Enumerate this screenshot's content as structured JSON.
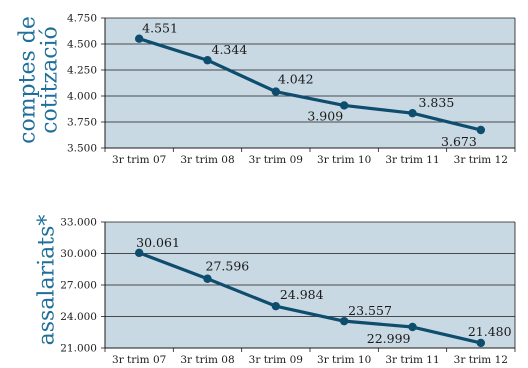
{
  "colors": {
    "plot_bg": "#c9d9e3",
    "line": "#0e4d6e",
    "axis_label": "#1f6f9a",
    "grid": "#1a1a1a"
  },
  "chart_data": [
    {
      "type": "line",
      "ylabel": "comptes de cotització",
      "ylabel_lines": [
        "comptes de",
        "cotització"
      ],
      "categories": [
        "3r trim 07",
        "3r trim 08",
        "3r trim 09",
        "3r trim 10",
        "3r trim 11",
        "3r trim 12"
      ],
      "values": [
        4551,
        4344,
        4042,
        3909,
        3835,
        3673
      ],
      "value_labels": [
        "4.551",
        "4.344",
        "4.042",
        "3.909",
        "3.835",
        "3.673"
      ],
      "yticks": [
        3500,
        3750,
        4000,
        4250,
        4500,
        4750
      ],
      "ytick_labels": [
        "3.500",
        "3.750",
        "4.000",
        "4.250",
        "4.500",
        "4.750"
      ],
      "ylim": [
        3500,
        4750
      ],
      "grid": true
    },
    {
      "type": "line",
      "ylabel": "assalariats*",
      "ylabel_lines": [
        "assalariats*"
      ],
      "categories": [
        "3r trim 07",
        "3r trim 08",
        "3r trim 09",
        "3r trim 10",
        "3r trim 11",
        "3r trim 12"
      ],
      "values": [
        30061,
        27596,
        24984,
        23557,
        22999,
        21480
      ],
      "value_labels": [
        "30.061",
        "27.596",
        "24.984",
        "23.557",
        "22.999",
        "21.480"
      ],
      "yticks": [
        21000,
        24000,
        27000,
        30000,
        33000
      ],
      "ytick_labels": [
        "21.000",
        "24.000",
        "27.000",
        "30.000",
        "33.000"
      ],
      "ylim": [
        21000,
        33000
      ],
      "grid": true
    }
  ]
}
